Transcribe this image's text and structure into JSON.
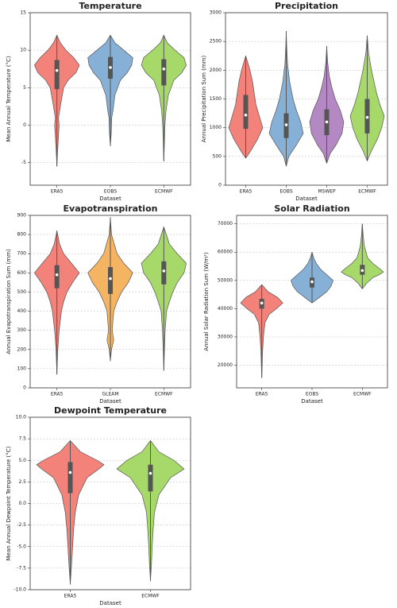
{
  "chart_data": [
    {
      "type": "violin",
      "title": "Temperature",
      "x_label": "Dataset",
      "y_label": "Mean Annual Temperature (°C)",
      "ylim": [
        -8,
        15
      ],
      "yticks": [
        -5,
        0,
        5,
        10,
        15
      ],
      "grid": true,
      "violins": [
        {
          "name": "ERA5",
          "color": "#f3837a",
          "min": -5.5,
          "q1": 4.8,
          "median": 7.3,
          "q3": 8.7,
          "max": 12,
          "density_y": [
            -5.5,
            -3,
            -1,
            0,
            1,
            3,
            5,
            6,
            7,
            8,
            9,
            10,
            11,
            12
          ],
          "density_width": [
            0,
            0.04,
            0.08,
            0.1,
            0.07,
            0.18,
            0.3,
            0.5,
            0.85,
            1,
            0.75,
            0.4,
            0.15,
            0
          ]
        },
        {
          "name": "EOBS",
          "color": "#86b0d6",
          "min": -2.8,
          "q1": 6.2,
          "median": 7.7,
          "q3": 9.1,
          "max": 12,
          "density_y": [
            -2.8,
            -1,
            1,
            2,
            4,
            6,
            7,
            8,
            9,
            10,
            11,
            12
          ],
          "density_width": [
            0,
            0.04,
            0.06,
            0.12,
            0.2,
            0.45,
            0.75,
            0.95,
            1,
            0.6,
            0.2,
            0
          ]
        },
        {
          "name": "ECMWF",
          "color": "#a6d96a",
          "min": -4.8,
          "q1": 5.3,
          "median": 7.5,
          "q3": 8.8,
          "max": 12,
          "density_y": [
            -4.8,
            -2,
            0,
            2,
            4,
            6,
            7,
            8,
            9,
            10,
            11,
            12
          ],
          "density_width": [
            0,
            0.03,
            0.05,
            0.1,
            0.2,
            0.45,
            0.8,
            1,
            0.9,
            0.5,
            0.15,
            0
          ]
        }
      ]
    },
    {
      "type": "violin",
      "title": "Precipitation",
      "x_label": "Dataset",
      "y_label": "Annual Precipitation Sum (mm)",
      "ylim": [
        0,
        3000
      ],
      "yticks": [
        0,
        500,
        1000,
        1500,
        2000,
        2500,
        3000
      ],
      "grid": true,
      "violins": [
        {
          "name": "ERA5",
          "color": "#f3837a",
          "min": 470,
          "q1": 980,
          "median": 1220,
          "q3": 1570,
          "max": 2250,
          "density_y": [
            470,
            600,
            800,
            1000,
            1200,
            1400,
            1600,
            1800,
            2000,
            2250
          ],
          "density_width": [
            0,
            0.3,
            0.7,
            1,
            0.8,
            0.6,
            0.5,
            0.4,
            0.25,
            0
          ]
        },
        {
          "name": "EOBS",
          "color": "#86b0d6",
          "min": 330,
          "q1": 820,
          "median": 1050,
          "q3": 1250,
          "max": 2680,
          "density_y": [
            330,
            500,
            700,
            900,
            1100,
            1300,
            1500,
            1800,
            2100,
            2400,
            2680
          ],
          "density_width": [
            0,
            0.15,
            0.6,
            1,
            0.85,
            0.6,
            0.4,
            0.2,
            0.08,
            0.03,
            0
          ]
        },
        {
          "name": "MSWEP",
          "color": "#b388c3",
          "min": 380,
          "q1": 870,
          "median": 1100,
          "q3": 1320,
          "max": 2420,
          "density_y": [
            380,
            550,
            700,
            900,
            1100,
            1300,
            1500,
            1700,
            1900,
            2150,
            2420
          ],
          "density_width": [
            0,
            0.2,
            0.55,
            0.9,
            1,
            0.8,
            0.5,
            0.3,
            0.15,
            0.05,
            0
          ]
        },
        {
          "name": "ECMWF",
          "color": "#a6d96a",
          "min": 420,
          "q1": 900,
          "median": 1180,
          "q3": 1500,
          "max": 2600,
          "density_y": [
            420,
            600,
            800,
            1000,
            1200,
            1400,
            1600,
            1800,
            2000,
            2300,
            2600
          ],
          "density_width": [
            0,
            0.25,
            0.6,
            0.85,
            1,
            0.75,
            0.55,
            0.4,
            0.25,
            0.08,
            0
          ]
        }
      ]
    },
    {
      "type": "violin",
      "title": "Evapotranspiration",
      "x_label": "Dataset",
      "y_label": "Annual Evapotranspiration Sum (mm)",
      "ylim": [
        0,
        900
      ],
      "yticks": [
        0,
        100,
        200,
        300,
        400,
        500,
        600,
        700,
        800,
        900
      ],
      "grid": true,
      "violins": [
        {
          "name": "ERA5",
          "color": "#f3837a",
          "min": 70,
          "q1": 520,
          "median": 590,
          "q3": 640,
          "max": 820,
          "density_y": [
            70,
            200,
            300,
            400,
            450,
            500,
            550,
            600,
            650,
            700,
            750,
            820
          ],
          "density_width": [
            0,
            0.04,
            0.1,
            0.2,
            0.3,
            0.45,
            0.7,
            1,
            0.65,
            0.3,
            0.12,
            0
          ]
        },
        {
          "name": "GLEAM",
          "color": "#f5b461",
          "min": 140,
          "q1": 490,
          "median": 570,
          "q3": 630,
          "max": 890,
          "density_y": [
            140,
            200,
            250,
            300,
            400,
            450,
            500,
            550,
            600,
            650,
            700,
            800,
            890
          ],
          "density_width": [
            0,
            0.05,
            0.15,
            0.08,
            0.15,
            0.3,
            0.5,
            0.8,
            1,
            0.6,
            0.3,
            0.05,
            0
          ]
        },
        {
          "name": "ECMWF",
          "color": "#a6d96a",
          "min": 90,
          "q1": 540,
          "median": 610,
          "q3": 660,
          "max": 840,
          "density_y": [
            90,
            200,
            300,
            400,
            450,
            500,
            550,
            600,
            650,
            700,
            750,
            840
          ],
          "density_width": [
            0,
            0.03,
            0.06,
            0.12,
            0.25,
            0.4,
            0.6,
            0.9,
            1,
            0.6,
            0.25,
            0
          ]
        }
      ]
    },
    {
      "type": "violin",
      "title": "Solar Radiation",
      "x_label": "Dataset",
      "y_label": "Annual Solar Radiation Sum (W/m²)",
      "ylim": [
        12000,
        73000
      ],
      "yticks": [
        20000,
        30000,
        40000,
        50000,
        60000,
        70000
      ],
      "grid": true,
      "violins": [
        {
          "name": "ERA5",
          "color": "#f3837a",
          "min": 15500,
          "q1": 40000,
          "median": 42000,
          "q3": 43500,
          "max": 48500,
          "density_y": [
            15500,
            20000,
            25000,
            30000,
            35000,
            38000,
            40000,
            42000,
            44000,
            46000,
            48500
          ],
          "density_width": [
            0,
            0.02,
            0.04,
            0.08,
            0.15,
            0.35,
            0.7,
            1,
            0.75,
            0.3,
            0
          ]
        },
        {
          "name": "EOBS",
          "color": "#86b0d6",
          "min": 42000,
          "q1": 47500,
          "median": 49500,
          "q3": 51000,
          "max": 60000,
          "density_y": [
            42000,
            44000,
            46000,
            48000,
            50000,
            52000,
            54000,
            56000,
            58000,
            60000
          ],
          "density_width": [
            0,
            0.35,
            0.7,
            0.9,
            1,
            0.7,
            0.4,
            0.2,
            0.08,
            0
          ]
        },
        {
          "name": "ECMWF",
          "color": "#a6d96a",
          "min": 47000,
          "q1": 52000,
          "median": 53500,
          "q3": 55500,
          "max": 70000,
          "density_y": [
            47000,
            49000,
            51000,
            52000,
            53000,
            54000,
            56000,
            58000,
            62000,
            66000,
            70000
          ],
          "density_width": [
            0,
            0.2,
            0.5,
            0.8,
            1,
            0.85,
            0.5,
            0.25,
            0.1,
            0.04,
            0
          ]
        }
      ]
    },
    {
      "type": "violin",
      "title": "Dewpoint Temperature",
      "x_label": "Dataset",
      "y_label": "Mean Annual Dewpoint Temperature (°C)",
      "ylim": [
        -10,
        10
      ],
      "yticks": [
        {
          "value": -10,
          "label": "-10.0"
        },
        {
          "value": -7.5,
          "label": "-7.5"
        },
        {
          "value": -5,
          "label": "-5.0"
        },
        {
          "value": -2.5,
          "label": "-2.5"
        },
        {
          "value": 0,
          "label": "0.0"
        },
        {
          "value": 2.5,
          "label": "2.5"
        },
        {
          "value": 5,
          "label": "5.0"
        },
        {
          "value": 7.5,
          "label": "7.5"
        },
        {
          "value": 10,
          "label": "10.0"
        }
      ],
      "grid": true,
      "violins": [
        {
          "name": "ERA5",
          "color": "#f3837a",
          "min": -9.4,
          "q1": 1.2,
          "median": 3.6,
          "q3": 4.8,
          "max": 7.3,
          "density_y": [
            -9.4,
            -7,
            -5,
            -3,
            -1,
            1,
            3,
            4,
            4.5,
            5,
            6,
            7.3
          ],
          "density_width": [
            0,
            0.04,
            0.07,
            0.1,
            0.15,
            0.25,
            0.5,
            0.85,
            1,
            0.8,
            0.3,
            0
          ]
        },
        {
          "name": "ECMWF",
          "color": "#a6d96a",
          "min": -9,
          "q1": 1.4,
          "median": 3.5,
          "q3": 4.5,
          "max": 7.3,
          "density_y": [
            -9,
            -7,
            -5,
            -3,
            -1,
            1,
            3,
            4,
            5,
            6,
            7.3
          ],
          "density_width": [
            0,
            0.03,
            0.05,
            0.08,
            0.12,
            0.25,
            0.6,
            1,
            0.7,
            0.25,
            0
          ]
        }
      ]
    }
  ]
}
